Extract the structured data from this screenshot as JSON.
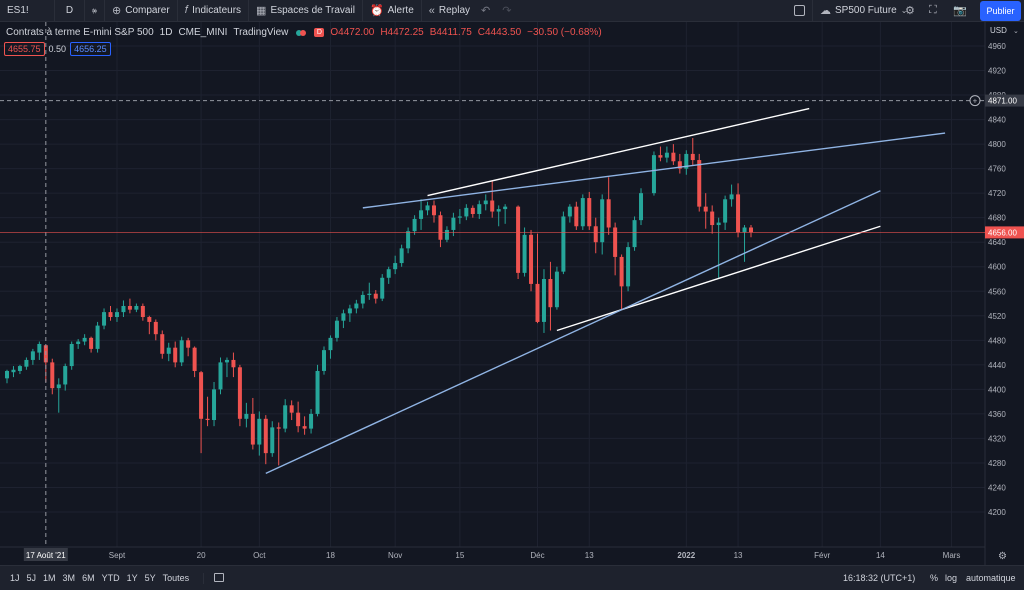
{
  "toolbar": {
    "symbol": "ES1!",
    "interval": "D",
    "compare": "Comparer",
    "indicators": "Indicateurs",
    "workspaces": "Espaces de Travail",
    "alert": "Alerte",
    "replay": "Replay",
    "layout_name": "SP500 Future",
    "publish": "Publier"
  },
  "legend": {
    "title": "Contrats à terme E-mini S&P 500",
    "interval": "1D",
    "exchange": "CME_MINI",
    "source": "TradingView",
    "badge": "D",
    "open": "O4472.00",
    "high": "H4472.25",
    "low": "B4411.75",
    "close": "C4443.50",
    "change": "−30.50 (−0.68%)"
  },
  "quote": {
    "bid": "4655.75",
    "spread": "0.50",
    "ask": "4656.25"
  },
  "price_axis": {
    "currency": "USD",
    "crosshair_label": "4871.00",
    "last_price_label": "4656.00"
  },
  "time_axis": {
    "crosshair_label": "17 Août '21"
  },
  "bottom": {
    "ranges": [
      "1J",
      "5J",
      "1M",
      "3M",
      "6M",
      "YTD",
      "1Y",
      "5Y",
      "Toutes"
    ],
    "clock": "16:18:32 (UTC+1)",
    "percent": "%",
    "log": "log",
    "auto": "automatique"
  },
  "colors": {
    "background": "#131722",
    "up": "#26a69a",
    "down": "#ef5350",
    "trendline_white": "#ffffff",
    "trendline_blue": "#90b4e4",
    "accent": "#2962ff"
  },
  "chart_data": {
    "type": "candlestick",
    "title": "Contrats à terme E-mini S&P 500",
    "ylim": [
      4180,
      4990
    ],
    "y_ticks": [
      4200,
      4240,
      4280,
      4320,
      4360,
      4400,
      4440,
      4480,
      4520,
      4560,
      4600,
      4640,
      4680,
      4720,
      4760,
      4800,
      4840,
      4880,
      4920,
      4960
    ],
    "x_tick_labels": [
      "Sept",
      "20",
      "Oct",
      "18",
      "Nov",
      "15",
      "Déc",
      "13",
      "2022",
      "13",
      "Févr",
      "14",
      "Mars"
    ],
    "candles": [
      {
        "d": "2021-08-09",
        "o": 4418,
        "h": 4432,
        "l": 4410,
        "c": 4430
      },
      {
        "d": "2021-08-10",
        "o": 4428,
        "h": 4438,
        "l": 4420,
        "c": 4432
      },
      {
        "d": "2021-08-11",
        "o": 4430,
        "h": 4440,
        "l": 4425,
        "c": 4438
      },
      {
        "d": "2021-08-12",
        "o": 4437,
        "h": 4452,
        "l": 4432,
        "c": 4448
      },
      {
        "d": "2021-08-13",
        "o": 4448,
        "h": 4466,
        "l": 4440,
        "c": 4462
      },
      {
        "d": "2021-08-16",
        "o": 4460,
        "h": 4478,
        "l": 4448,
        "c": 4474
      },
      {
        "d": "2021-08-17",
        "o": 4472,
        "h": 4472,
        "l": 4412,
        "c": 4444
      },
      {
        "d": "2021-08-18",
        "o": 4444,
        "h": 4450,
        "l": 4392,
        "c": 4402
      },
      {
        "d": "2021-08-19",
        "o": 4402,
        "h": 4418,
        "l": 4362,
        "c": 4408
      },
      {
        "d": "2021-08-20",
        "o": 4408,
        "h": 4442,
        "l": 4398,
        "c": 4438
      },
      {
        "d": "2021-08-23",
        "o": 4438,
        "h": 4478,
        "l": 4432,
        "c": 4474
      },
      {
        "d": "2021-08-24",
        "o": 4474,
        "h": 4482,
        "l": 4466,
        "c": 4478
      },
      {
        "d": "2021-08-25",
        "o": 4478,
        "h": 4490,
        "l": 4472,
        "c": 4484
      },
      {
        "d": "2021-08-26",
        "o": 4484,
        "h": 4486,
        "l": 4460,
        "c": 4466
      },
      {
        "d": "2021-08-27",
        "o": 4466,
        "h": 4510,
        "l": 4460,
        "c": 4504
      },
      {
        "d": "2021-08-30",
        "o": 4504,
        "h": 4532,
        "l": 4498,
        "c": 4526
      },
      {
        "d": "2021-08-31",
        "o": 4526,
        "h": 4536,
        "l": 4512,
        "c": 4518
      },
      {
        "d": "2021-09-01",
        "o": 4518,
        "h": 4532,
        "l": 4510,
        "c": 4526
      },
      {
        "d": "2021-09-02",
        "o": 4526,
        "h": 4545,
        "l": 4518,
        "c": 4536
      },
      {
        "d": "2021-09-03",
        "o": 4536,
        "h": 4548,
        "l": 4524,
        "c": 4530
      },
      {
        "d": "2021-09-06",
        "o": 4530,
        "h": 4540,
        "l": 4526,
        "c": 4536
      },
      {
        "d": "2021-09-07",
        "o": 4536,
        "h": 4540,
        "l": 4512,
        "c": 4518
      },
      {
        "d": "2021-09-08",
        "o": 4518,
        "h": 4520,
        "l": 4490,
        "c": 4510
      },
      {
        "d": "2021-09-09",
        "o": 4510,
        "h": 4514,
        "l": 4480,
        "c": 4490
      },
      {
        "d": "2021-09-10",
        "o": 4490,
        "h": 4496,
        "l": 4450,
        "c": 4458
      },
      {
        "d": "2021-09-13",
        "o": 4458,
        "h": 4476,
        "l": 4446,
        "c": 4468
      },
      {
        "d": "2021-09-14",
        "o": 4468,
        "h": 4478,
        "l": 4436,
        "c": 4444
      },
      {
        "d": "2021-09-15",
        "o": 4444,
        "h": 4486,
        "l": 4438,
        "c": 4480
      },
      {
        "d": "2021-09-16",
        "o": 4480,
        "h": 4484,
        "l": 4454,
        "c": 4468
      },
      {
        "d": "2021-09-17",
        "o": 4468,
        "h": 4470,
        "l": 4420,
        "c": 4430
      },
      {
        "d": "2021-09-20",
        "o": 4428,
        "h": 4430,
        "l": 4296,
        "c": 4352
      },
      {
        "d": "2021-09-21",
        "o": 4352,
        "h": 4388,
        "l": 4340,
        "c": 4350
      },
      {
        "d": "2021-09-22",
        "o": 4350,
        "h": 4412,
        "l": 4340,
        "c": 4400
      },
      {
        "d": "2021-09-23",
        "o": 4400,
        "h": 4452,
        "l": 4392,
        "c": 4444
      },
      {
        "d": "2021-09-24",
        "o": 4444,
        "h": 4452,
        "l": 4420,
        "c": 4448
      },
      {
        "d": "2021-09-27",
        "o": 4448,
        "h": 4460,
        "l": 4420,
        "c": 4436
      },
      {
        "d": "2021-09-28",
        "o": 4436,
        "h": 4440,
        "l": 4340,
        "c": 4352
      },
      {
        "d": "2021-09-29",
        "o": 4352,
        "h": 4378,
        "l": 4338,
        "c": 4360
      },
      {
        "d": "2021-09-30",
        "o": 4360,
        "h": 4386,
        "l": 4302,
        "c": 4310
      },
      {
        "d": "2021-10-01",
        "o": 4310,
        "h": 4364,
        "l": 4292,
        "c": 4352
      },
      {
        "d": "2021-10-04",
        "o": 4352,
        "h": 4358,
        "l": 4278,
        "c": 4296
      },
      {
        "d": "2021-10-05",
        "o": 4296,
        "h": 4348,
        "l": 4290,
        "c": 4338
      },
      {
        "d": "2021-10-06",
        "o": 4338,
        "h": 4346,
        "l": 4276,
        "c": 4336
      },
      {
        "d": "2021-10-07",
        "o": 4336,
        "h": 4384,
        "l": 4330,
        "c": 4374
      },
      {
        "d": "2021-10-08",
        "o": 4374,
        "h": 4382,
        "l": 4350,
        "c": 4362
      },
      {
        "d": "2021-10-11",
        "o": 4362,
        "h": 4380,
        "l": 4330,
        "c": 4340
      },
      {
        "d": "2021-10-12",
        "o": 4340,
        "h": 4356,
        "l": 4326,
        "c": 4336
      },
      {
        "d": "2021-10-13",
        "o": 4336,
        "h": 4368,
        "l": 4328,
        "c": 4360
      },
      {
        "d": "2021-10-14",
        "o": 4360,
        "h": 4440,
        "l": 4356,
        "c": 4430
      },
      {
        "d": "2021-10-15",
        "o": 4430,
        "h": 4470,
        "l": 4424,
        "c": 4464
      },
      {
        "d": "2021-10-18",
        "o": 4464,
        "h": 4488,
        "l": 4450,
        "c": 4484
      },
      {
        "d": "2021-10-19",
        "o": 4484,
        "h": 4518,
        "l": 4478,
        "c": 4512
      },
      {
        "d": "2021-10-20",
        "o": 4512,
        "h": 4530,
        "l": 4500,
        "c": 4524
      },
      {
        "d": "2021-10-21",
        "o": 4524,
        "h": 4538,
        "l": 4510,
        "c": 4532
      },
      {
        "d": "2021-10-22",
        "o": 4532,
        "h": 4546,
        "l": 4524,
        "c": 4540
      },
      {
        "d": "2021-10-25",
        "o": 4540,
        "h": 4560,
        "l": 4532,
        "c": 4554
      },
      {
        "d": "2021-10-26",
        "o": 4554,
        "h": 4574,
        "l": 4546,
        "c": 4556
      },
      {
        "d": "2021-10-27",
        "o": 4556,
        "h": 4562,
        "l": 4540,
        "c": 4548
      },
      {
        "d": "2021-10-28",
        "o": 4548,
        "h": 4588,
        "l": 4544,
        "c": 4582
      },
      {
        "d": "2021-10-29",
        "o": 4582,
        "h": 4600,
        "l": 4572,
        "c": 4596
      },
      {
        "d": "2021-11-01",
        "o": 4596,
        "h": 4618,
        "l": 4588,
        "c": 4606
      },
      {
        "d": "2021-11-02",
        "o": 4606,
        "h": 4636,
        "l": 4600,
        "c": 4630
      },
      {
        "d": "2021-11-03",
        "o": 4630,
        "h": 4664,
        "l": 4622,
        "c": 4658
      },
      {
        "d": "2021-11-04",
        "o": 4658,
        "h": 4684,
        "l": 4652,
        "c": 4678
      },
      {
        "d": "2021-11-05",
        "o": 4678,
        "h": 4710,
        "l": 4660,
        "c": 4692
      },
      {
        "d": "2021-11-08",
        "o": 4692,
        "h": 4706,
        "l": 4684,
        "c": 4700
      },
      {
        "d": "2021-11-09",
        "o": 4700,
        "h": 4708,
        "l": 4672,
        "c": 4684
      },
      {
        "d": "2021-11-10",
        "o": 4684,
        "h": 4690,
        "l": 4632,
        "c": 4644
      },
      {
        "d": "2021-11-11",
        "o": 4644,
        "h": 4666,
        "l": 4640,
        "c": 4660
      },
      {
        "d": "2021-11-12",
        "o": 4660,
        "h": 4688,
        "l": 4650,
        "c": 4680
      },
      {
        "d": "2021-11-15",
        "o": 4680,
        "h": 4694,
        "l": 4670,
        "c": 4682
      },
      {
        "d": "2021-11-16",
        "o": 4682,
        "h": 4702,
        "l": 4676,
        "c": 4696
      },
      {
        "d": "2021-11-17",
        "o": 4696,
        "h": 4700,
        "l": 4680,
        "c": 4686
      },
      {
        "d": "2021-11-18",
        "o": 4686,
        "h": 4708,
        "l": 4678,
        "c": 4702
      },
      {
        "d": "2021-11-19",
        "o": 4702,
        "h": 4718,
        "l": 4692,
        "c": 4708
      },
      {
        "d": "2021-11-22",
        "o": 4708,
        "h": 4740,
        "l": 4680,
        "c": 4690
      },
      {
        "d": "2021-11-23",
        "o": 4690,
        "h": 4700,
        "l": 4666,
        "c": 4694
      },
      {
        "d": "2021-11-24",
        "o": 4694,
        "h": 4702,
        "l": 4670,
        "c": 4698
      },
      {
        "d": "2021-11-26",
        "o": 4698,
        "h": 4700,
        "l": 4580,
        "c": 4590
      },
      {
        "d": "2021-11-29",
        "o": 4590,
        "h": 4664,
        "l": 4584,
        "c": 4652
      },
      {
        "d": "2021-11-30",
        "o": 4652,
        "h": 4660,
        "l": 4560,
        "c": 4572
      },
      {
        "d": "2021-12-01",
        "o": 4572,
        "h": 4654,
        "l": 4508,
        "c": 4510
      },
      {
        "d": "2021-12-02",
        "o": 4510,
        "h": 4596,
        "l": 4492,
        "c": 4580
      },
      {
        "d": "2021-12-03",
        "o": 4580,
        "h": 4608,
        "l": 4496,
        "c": 4534
      },
      {
        "d": "2021-12-06",
        "o": 4534,
        "h": 4600,
        "l": 4530,
        "c": 4592
      },
      {
        "d": "2021-12-07",
        "o": 4592,
        "h": 4690,
        "l": 4588,
        "c": 4682
      },
      {
        "d": "2021-12-08",
        "o": 4682,
        "h": 4702,
        "l": 4672,
        "c": 4698
      },
      {
        "d": "2021-12-09",
        "o": 4698,
        "h": 4706,
        "l": 4660,
        "c": 4666
      },
      {
        "d": "2021-12-10",
        "o": 4666,
        "h": 4718,
        "l": 4660,
        "c": 4712
      },
      {
        "d": "2021-12-13",
        "o": 4712,
        "h": 4722,
        "l": 4660,
        "c": 4666
      },
      {
        "d": "2021-12-14",
        "o": 4666,
        "h": 4680,
        "l": 4622,
        "c": 4640
      },
      {
        "d": "2021-12-15",
        "o": 4640,
        "h": 4718,
        "l": 4620,
        "c": 4710
      },
      {
        "d": "2021-12-16",
        "o": 4710,
        "h": 4746,
        "l": 4652,
        "c": 4664
      },
      {
        "d": "2021-12-17",
        "o": 4664,
        "h": 4672,
        "l": 4586,
        "c": 4616
      },
      {
        "d": "2021-12-20",
        "o": 4616,
        "h": 4620,
        "l": 4530,
        "c": 4568
      },
      {
        "d": "2021-12-21",
        "o": 4568,
        "h": 4640,
        "l": 4560,
        "c": 4632
      },
      {
        "d": "2021-12-22",
        "o": 4632,
        "h": 4682,
        "l": 4626,
        "c": 4676
      },
      {
        "d": "2021-12-23",
        "o": 4676,
        "h": 4728,
        "l": 4668,
        "c": 4720
      },
      {
        "d": "2021-12-27",
        "o": 4720,
        "h": 4788,
        "l": 4716,
        "c": 4782
      },
      {
        "d": "2021-12-28",
        "o": 4782,
        "h": 4796,
        "l": 4772,
        "c": 4778
      },
      {
        "d": "2021-12-29",
        "o": 4778,
        "h": 4796,
        "l": 4770,
        "c": 4786
      },
      {
        "d": "2021-12-30",
        "o": 4786,
        "h": 4800,
        "l": 4766,
        "c": 4772
      },
      {
        "d": "2021-12-31",
        "o": 4772,
        "h": 4784,
        "l": 4752,
        "c": 4760
      },
      {
        "d": "2022-01-03",
        "o": 4760,
        "h": 4790,
        "l": 4750,
        "c": 4784
      },
      {
        "d": "2022-01-04",
        "o": 4784,
        "h": 4810,
        "l": 4766,
        "c": 4774
      },
      {
        "d": "2022-01-05",
        "o": 4774,
        "h": 4784,
        "l": 4690,
        "c": 4698
      },
      {
        "d": "2022-01-06",
        "o": 4698,
        "h": 4720,
        "l": 4662,
        "c": 4690
      },
      {
        "d": "2022-01-07",
        "o": 4690,
        "h": 4700,
        "l": 4654,
        "c": 4668
      },
      {
        "d": "2022-01-10",
        "o": 4668,
        "h": 4680,
        "l": 4582,
        "c": 4672
      },
      {
        "d": "2022-01-11",
        "o": 4672,
        "h": 4716,
        "l": 4660,
        "c": 4710
      },
      {
        "d": "2022-01-12",
        "o": 4710,
        "h": 4734,
        "l": 4698,
        "c": 4718
      },
      {
        "d": "2022-01-13",
        "o": 4718,
        "h": 4736,
        "l": 4648,
        "c": 4656
      },
      {
        "d": "2022-01-14",
        "o": 4656,
        "h": 4668,
        "l": 4608,
        "c": 4664
      },
      {
        "d": "2022-01-17",
        "o": 4664,
        "h": 4668,
        "l": 4648,
        "c": 4656
      }
    ],
    "trendlines": [
      {
        "name": "upper-white",
        "color": "white",
        "p1": [
          "2021-11-08",
          4716
        ],
        "p2": [
          "2022-01-28",
          4858
        ]
      },
      {
        "name": "upper-blue",
        "color": "blue",
        "p1": [
          "2021-10-25",
          4696
        ],
        "p2": [
          "2022-02-28",
          4818
        ]
      },
      {
        "name": "lower-white",
        "color": "white",
        "p1": [
          "2021-12-06",
          4496
        ],
        "p2": [
          "2022-02-14",
          4666
        ]
      },
      {
        "name": "lower-blue",
        "color": "blue",
        "p1": [
          "2021-10-04",
          4263
        ],
        "p2": [
          "2022-02-14",
          4724
        ]
      }
    ]
  }
}
